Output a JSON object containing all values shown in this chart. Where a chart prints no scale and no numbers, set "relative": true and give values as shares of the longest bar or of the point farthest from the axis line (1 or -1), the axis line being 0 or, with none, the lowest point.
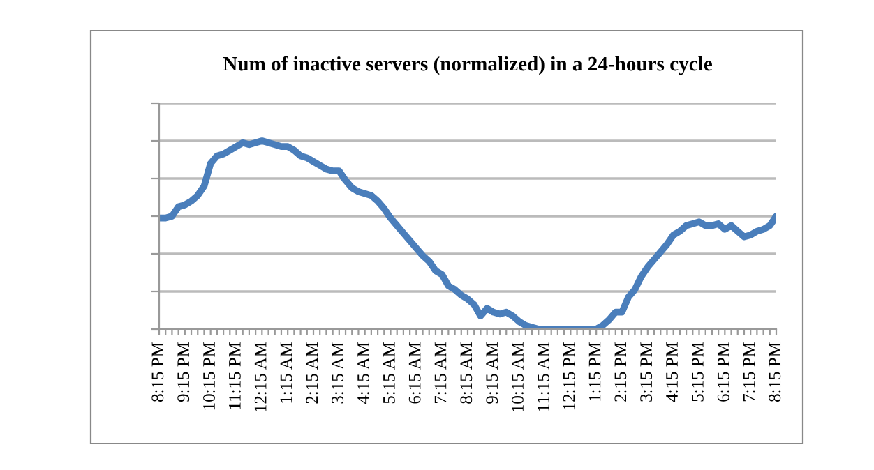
{
  "chart_data": {
    "type": "line",
    "title": "Num of inactive servers (normalized) in a 24-hours cycle",
    "relative": true,
    "grid": "y",
    "legend": false,
    "marker": "none",
    "line_style": "solid",
    "categories": [
      "8:15 PM",
      null,
      null,
      null,
      "9:15 PM",
      null,
      null,
      null,
      "10:15 PM",
      null,
      null,
      null,
      "11:15 PM",
      null,
      null,
      null,
      "12:15 AM",
      null,
      null,
      null,
      "1:15 AM",
      null,
      null,
      null,
      "2:15 AM",
      null,
      null,
      null,
      "3:15 AM",
      null,
      null,
      null,
      "4:15 AM",
      null,
      null,
      null,
      "5:15 AM",
      null,
      null,
      null,
      "6:15 AM",
      null,
      null,
      null,
      "7:15 AM",
      null,
      null,
      null,
      "8:15 AM",
      null,
      null,
      null,
      "9:15 AM",
      null,
      null,
      null,
      "10:15 AM",
      null,
      null,
      null,
      "11:15 AM",
      null,
      null,
      null,
      "12:15 PM",
      null,
      null,
      null,
      "1:15 PM",
      null,
      null,
      null,
      "2:15 PM",
      null,
      null,
      null,
      "3:15 PM",
      null,
      null,
      null,
      "4:15 PM",
      null,
      null,
      null,
      "5:15 PM",
      null,
      null,
      null,
      "6:15 PM",
      null,
      null,
      null,
      "7:15 PM",
      null,
      null,
      null,
      "8:15 PM"
    ],
    "series": [
      {
        "color": "#4a7ebb",
        "values": [
          0.59,
          0.59,
          0.6,
          0.65,
          0.66,
          0.68,
          0.71,
          0.76,
          0.88,
          0.92,
          0.93,
          0.95,
          0.97,
          0.99,
          0.98,
          0.99,
          1,
          0.99,
          0.98,
          0.97,
          0.97,
          0.95,
          0.92,
          0.91,
          0.89,
          0.87,
          0.85,
          0.84,
          0.84,
          0.79,
          0.75,
          0.73,
          0.72,
          0.71,
          0.68,
          0.64,
          0.59,
          0.55,
          0.51,
          0.47,
          0.43,
          0.39,
          0.36,
          0.31,
          0.29,
          0.23,
          0.21,
          0.18,
          0.16,
          0.13,
          0.07,
          0.11,
          0.09,
          0.08,
          0.09,
          0.07,
          0.04,
          0.02,
          0.01,
          0,
          0,
          0,
          0,
          0,
          0,
          0,
          0,
          0,
          0,
          0.02,
          0.05,
          0.09,
          0.09,
          0.17,
          0.21,
          0.28,
          0.33,
          0.37,
          0.41,
          0.45,
          0.5,
          0.52,
          0.55,
          0.56,
          0.57,
          0.55,
          0.55,
          0.56,
          0.53,
          0.55,
          0.52,
          0.49,
          0.5,
          0.52,
          0.53,
          0.55,
          0.6
        ]
      }
    ]
  }
}
